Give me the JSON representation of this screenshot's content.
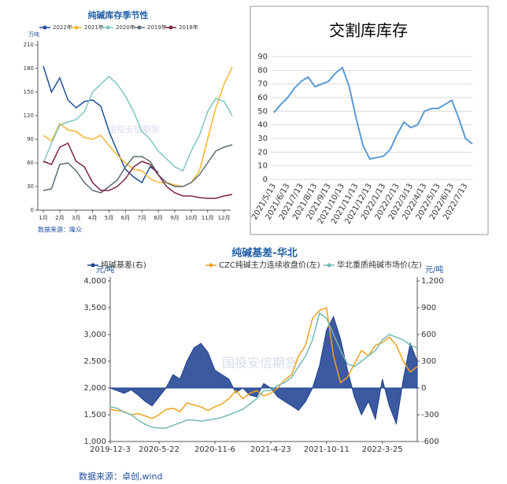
{
  "chart_data": [
    {
      "type": "line",
      "title": "纯碱库存季节性",
      "y_label": "万吨",
      "source": "数据来源：隆众",
      "watermark": "国投安信期货",
      "categories": [
        "1月",
        null,
        "2月",
        null,
        "3月",
        null,
        "4月",
        null,
        "5月",
        null,
        "6月",
        null,
        "7月",
        null,
        "8月",
        null,
        "9月",
        null,
        "10月",
        null,
        "11月",
        null,
        "12月",
        null
      ],
      "ylim": [
        0,
        210
      ],
      "yticks": [
        0,
        30,
        60,
        90,
        120,
        150,
        180,
        210
      ],
      "legend": "top",
      "series": [
        {
          "name": "2022年",
          "color": "#1f4e9c",
          "values": [
            183,
            150,
            168,
            140,
            130,
            138,
            140,
            132,
            100,
            75,
            52,
            42,
            35,
            55,
            48,
            null,
            null,
            null,
            null,
            null,
            null,
            null,
            null,
            null
          ]
        },
        {
          "name": "2021年",
          "color": "#f5b731",
          "values": [
            95,
            88,
            110,
            102,
            100,
            92,
            90,
            95,
            82,
            70,
            60,
            52,
            50,
            40,
            35,
            35,
            32,
            30,
            35,
            50,
            90,
            130,
            160,
            182
          ]
        },
        {
          "name": "2020年",
          "color": "#7ec4c4",
          "values": [
            60,
            85,
            108,
            112,
            115,
            125,
            150,
            160,
            170,
            160,
            145,
            125,
            100,
            90,
            75,
            65,
            55,
            50,
            75,
            95,
            125,
            142,
            138,
            120
          ]
        },
        {
          "name": "2019年",
          "color": "#5a6b73",
          "values": [
            25,
            27,
            58,
            60,
            50,
            35,
            25,
            22,
            30,
            38,
            55,
            68,
            68,
            62,
            45,
            35,
            30,
            30,
            35,
            45,
            60,
            75,
            80,
            83
          ]
        },
        {
          "name": "2018年",
          "color": "#7b2346",
          "values": [
            62,
            58,
            80,
            85,
            62,
            55,
            35,
            25,
            25,
            30,
            40,
            55,
            62,
            58,
            45,
            30,
            22,
            18,
            18,
            16,
            15,
            15,
            18,
            20
          ]
        }
      ]
    },
    {
      "type": "line",
      "title": "交割库库存",
      "grid": true,
      "categories": [
        "2021/5/13",
        null,
        "2021/6/13",
        null,
        "2021/7/13",
        null,
        "2021/8/13",
        null,
        "2021/9/13",
        null,
        "2021/10/13",
        null,
        "2021/11/13",
        null,
        "2021/12/13",
        null,
        "2022/1/13",
        null,
        "2022/2/13",
        null,
        "2022/3/13",
        null,
        "2022/4/13",
        null,
        "2022/5/13",
        null,
        "2022/6/13",
        null,
        "2022/7/13",
        null
      ],
      "ylim": [
        0,
        90
      ],
      "yticks": [
        0,
        10,
        20,
        30,
        40,
        50,
        60,
        70,
        80,
        90
      ],
      "series": [
        {
          "color": "#5b9bd5",
          "values": [
            49,
            55,
            60,
            67,
            72,
            75,
            68,
            70,
            72,
            78,
            82,
            68,
            45,
            25,
            15,
            16,
            17,
            22,
            33,
            42,
            38,
            40,
            50,
            52,
            52,
            55,
            58,
            45,
            30,
            26
          ]
        }
      ]
    },
    {
      "type": "line",
      "title": "纯碱基差-华北",
      "y_label": "元/吨",
      "y2_label": "元/吨",
      "source": "数据来源：卓创,wind",
      "watermark": "国投安信期货",
      "legend": "top",
      "categories": [
        "2019-12-3",
        null,
        null,
        null,
        null,
        null,
        null,
        "2020-5-22",
        null,
        null,
        null,
        null,
        null,
        null,
        null,
        "2020-11-6",
        null,
        null,
        null,
        null,
        null,
        null,
        null,
        "2021-4-23",
        null,
        null,
        null,
        null,
        null,
        null,
        null,
        "2021-10-11",
        null,
        null,
        null,
        null,
        null,
        null,
        null,
        "2022-3-25",
        null,
        null,
        null,
        null,
        null
      ],
      "ylim": [
        1000,
        4000
      ],
      "yticks": [
        {
          "value": 1000,
          "label": "1,000"
        },
        {
          "value": 1500,
          "label": "1,500"
        },
        {
          "value": 2000,
          "label": "2,000"
        },
        {
          "value": 2500,
          "label": "2,500"
        },
        {
          "value": 3000,
          "label": "3,000"
        },
        {
          "value": 3500,
          "label": "3,500"
        },
        {
          "value": 4000,
          "label": "4,000"
        }
      ],
      "y2lim": [
        -600,
        1200
      ],
      "y2ticks": [
        -600,
        -300,
        0,
        300,
        600,
        900,
        {
          "value": 1200,
          "label": "1,200"
        }
      ],
      "series": [
        {
          "name": "纯碱基差(右)",
          "color": "#1a3d8f",
          "axis": "y2",
          "fill": true,
          "values": [
            0,
            -30,
            -60,
            -20,
            -80,
            -150,
            -200,
            -100,
            0,
            150,
            100,
            300,
            450,
            500,
            400,
            200,
            150,
            100,
            -50,
            0,
            -80,
            -100,
            50,
            0,
            -100,
            -150,
            -200,
            -250,
            -150,
            0,
            250,
            650,
            800,
            550,
            200,
            -100,
            -300,
            -150,
            -350,
            100,
            -200,
            -400,
            100,
            500,
            300
          ]
        },
        {
          "name": "CZC纯碱主力连续收盘价(左)",
          "color": "#f0a21e",
          "values": [
            1600,
            1580,
            1560,
            1500,
            1520,
            1480,
            1430,
            1500,
            1600,
            1620,
            1560,
            1720,
            1680,
            1650,
            1580,
            1650,
            1700,
            1800,
            1950,
            1800,
            1900,
            1950,
            1850,
            1900,
            2000,
            2150,
            2250,
            2600,
            2800,
            3300,
            3450,
            3500,
            2600,
            2100,
            2200,
            2450,
            2700,
            2600,
            2800,
            2850,
            2950,
            2800,
            2500,
            2300,
            2400
          ]
        },
        {
          "name": "华北重质纯碱市场价(左)",
          "color": "#74b9b5",
          "values": [
            1650,
            1620,
            1550,
            1500,
            1400,
            1320,
            1270,
            1250,
            1250,
            1300,
            1350,
            1400,
            1400,
            1380,
            1400,
            1420,
            1450,
            1500,
            1550,
            1600,
            1700,
            1800,
            1950,
            1950,
            2050,
            2100,
            2200,
            2400,
            2600,
            2900,
            3400,
            3300,
            3000,
            2700,
            2450,
            2400,
            2500,
            2600,
            2700,
            2900,
            3000,
            2950,
            2900,
            2800,
            2750
          ]
        }
      ]
    }
  ]
}
